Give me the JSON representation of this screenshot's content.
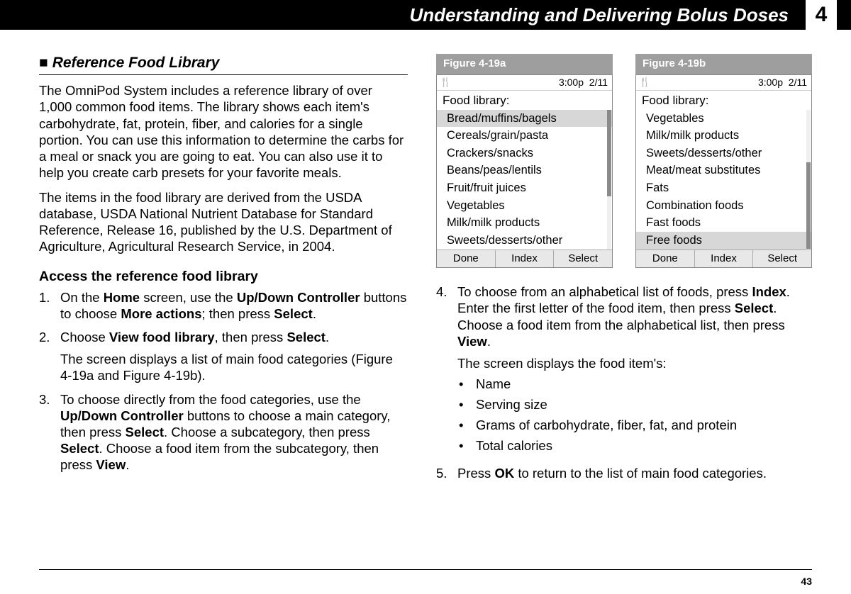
{
  "header": {
    "title": "Understanding and Delivering Bolus Doses",
    "chapter_number": "4"
  },
  "page_number": "43",
  "left": {
    "section_marker": "■",
    "section_title": "Reference Food Library",
    "para1": "The OmniPod System includes a reference library of over 1,000 common food items. The library shows each item's carbohydrate, fat, protein, fiber, and calories for a single portion. You can use this information to determine the carbs for a meal or snack you are going to eat. You can also use it to help you create carb presets for your favorite meals.",
    "para2": "The items in the food library are derived from the USDA database, USDA National Nutrient Database for Standard Reference, Release 16, published by the U.S. Department of Agriculture, Agricultural Research Service, in 2004.",
    "subhead": "Access the reference food library",
    "step1": {
      "num": "1.",
      "pre": "On the ",
      "b1": "Home",
      "mid1": " screen, use the ",
      "b2": "Up/Down Controller",
      "mid2": " buttons to choose ",
      "b3": "More actions",
      "mid3": "; then press ",
      "b4": "Select",
      "end": "."
    },
    "step2": {
      "num": "2.",
      "pre": "Choose ",
      "b1": "View food library",
      "mid1": ", then press ",
      "b2": "Select",
      "end": ".",
      "sub": "The screen displays a list of main food categories (Figure 4-19a and Figure 4-19b)."
    },
    "step3": {
      "num": "3.",
      "pre": "To choose directly from the food categories, use the ",
      "b1": "Up/Down Controller",
      "mid1": " buttons to choose a main category, then press ",
      "b2": "Select",
      "mid2": ". Choose a subcategory, then press ",
      "b3": "Select",
      "mid3": ". Choose a food item from the subcategory, then press ",
      "b4": "View",
      "end": "."
    }
  },
  "right": {
    "fig_a_caption": "Figure 4-19a",
    "fig_b_caption": "Figure 4-19b",
    "status_time": "3:00p",
    "status_date": "2/11",
    "screen_title": "Food library:",
    "list_a": [
      {
        "label": "Bread/muffins/bagels",
        "selected": true
      },
      {
        "label": "Cereals/grain/pasta",
        "selected": false
      },
      {
        "label": "Crackers/snacks",
        "selected": false
      },
      {
        "label": "Beans/peas/lentils",
        "selected": false
      },
      {
        "label": "Fruit/fruit juices",
        "selected": false
      },
      {
        "label": "Vegetables",
        "selected": false
      },
      {
        "label": "Milk/milk products",
        "selected": false
      },
      {
        "label": "Sweets/desserts/other",
        "selected": false
      }
    ],
    "list_b": [
      {
        "label": "Vegetables",
        "selected": false
      },
      {
        "label": "Milk/milk products",
        "selected": false
      },
      {
        "label": "Sweets/desserts/other",
        "selected": false
      },
      {
        "label": "Meat/meat substitutes",
        "selected": false
      },
      {
        "label": "Fats",
        "selected": false
      },
      {
        "label": "Combination foods",
        "selected": false
      },
      {
        "label": "Fast foods",
        "selected": false
      },
      {
        "label": "Free foods",
        "selected": true
      }
    ],
    "softkeys": [
      "Done",
      "Index",
      "Select"
    ],
    "scroll_a": {
      "top_pct": 0,
      "height_pct": 62
    },
    "scroll_b": {
      "top_pct": 38,
      "height_pct": 62
    },
    "step4": {
      "num": "4.",
      "pre": "To choose from an alphabetical list of foods, press ",
      "b1": "Index",
      "mid1": ". Enter the first letter of the food item, then press ",
      "b2": "Select",
      "mid2": ". Choose a food item from the alphabetical list, then press ",
      "b3": "View",
      "end": ".",
      "sub_intro": "The screen displays the food item's:",
      "bullets": [
        "Name",
        "Serving size",
        "Grams of carbohydrate, fiber, fat, and protein",
        "Total calories"
      ]
    },
    "step5": {
      "num": "5.",
      "pre": "Press ",
      "b1": "OK",
      "end": " to return to the list of main food categories."
    }
  }
}
